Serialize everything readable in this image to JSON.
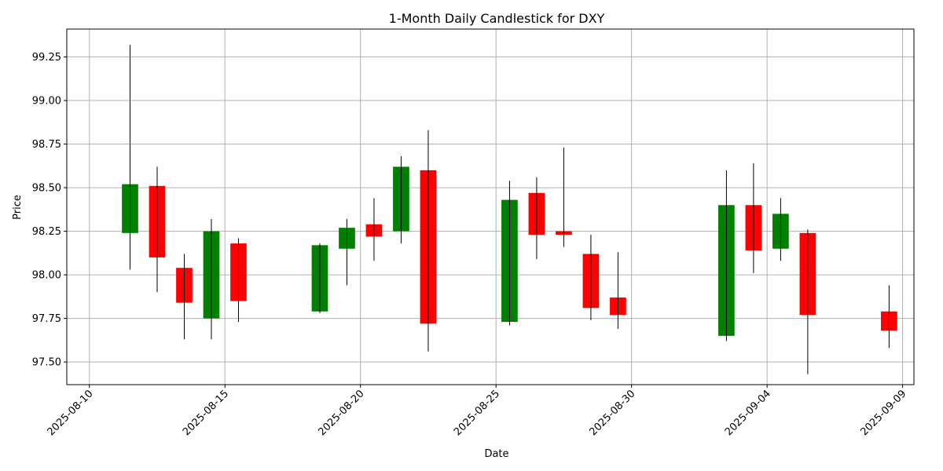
{
  "chart_data": {
    "type": "candlestick",
    "title": "1-Month Daily Candlestick for DXY",
    "xlabel": "Date",
    "ylabel": "Price",
    "ylim": [
      97.37,
      99.41
    ],
    "xlim": [
      "2025-08-09T04:00",
      "2025-09-09T10:00"
    ],
    "grid": true,
    "colors": {
      "up": "#008000",
      "down": "#ff0000",
      "wick": "#000000"
    },
    "x_ticks": [
      "2025-08-10",
      "2025-08-15",
      "2025-08-20",
      "2025-08-25",
      "2025-08-30",
      "2025-09-04",
      "2025-09-09"
    ],
    "y_ticks": [
      "97.50",
      "97.75",
      "98.00",
      "98.25",
      "98.50",
      "98.75",
      "99.00",
      "99.25"
    ],
    "candles": [
      {
        "date": "2025-08-11",
        "open": 98.24,
        "high": 99.32,
        "low": 98.03,
        "close": 98.52
      },
      {
        "date": "2025-08-12",
        "open": 98.51,
        "high": 98.62,
        "low": 97.9,
        "close": 98.1
      },
      {
        "date": "2025-08-13",
        "open": 98.04,
        "high": 98.12,
        "low": 97.63,
        "close": 97.84
      },
      {
        "date": "2025-08-14",
        "open": 97.75,
        "high": 98.32,
        "low": 97.63,
        "close": 98.25
      },
      {
        "date": "2025-08-15",
        "open": 98.18,
        "high": 98.21,
        "low": 97.73,
        "close": 97.85
      },
      {
        "date": "2025-08-18",
        "open": 97.79,
        "high": 98.18,
        "low": 97.78,
        "close": 98.17
      },
      {
        "date": "2025-08-19",
        "open": 98.15,
        "high": 98.32,
        "low": 97.94,
        "close": 98.27
      },
      {
        "date": "2025-08-20",
        "open": 98.29,
        "high": 98.44,
        "low": 98.08,
        "close": 98.22
      },
      {
        "date": "2025-08-21",
        "open": 98.25,
        "high": 98.68,
        "low": 98.18,
        "close": 98.62
      },
      {
        "date": "2025-08-22",
        "open": 98.6,
        "high": 98.83,
        "low": 97.56,
        "close": 97.72
      },
      {
        "date": "2025-08-25",
        "open": 97.73,
        "high": 98.54,
        "low": 97.71,
        "close": 98.43
      },
      {
        "date": "2025-08-26",
        "open": 98.47,
        "high": 98.56,
        "low": 98.09,
        "close": 98.23
      },
      {
        "date": "2025-08-27",
        "open": 98.25,
        "high": 98.73,
        "low": 98.16,
        "close": 98.23
      },
      {
        "date": "2025-08-28",
        "open": 98.12,
        "high": 98.23,
        "low": 97.74,
        "close": 97.81
      },
      {
        "date": "2025-08-29",
        "open": 97.87,
        "high": 98.13,
        "low": 97.69,
        "close": 97.77
      },
      {
        "date": "2025-09-02",
        "open": 97.65,
        "high": 98.6,
        "low": 97.62,
        "close": 98.4
      },
      {
        "date": "2025-09-03",
        "open": 98.4,
        "high": 98.64,
        "low": 98.01,
        "close": 98.14
      },
      {
        "date": "2025-09-04",
        "open": 98.15,
        "high": 98.44,
        "low": 98.08,
        "close": 98.35
      },
      {
        "date": "2025-09-05",
        "open": 98.24,
        "high": 98.26,
        "low": 97.43,
        "close": 97.77
      },
      {
        "date": "2025-09-08",
        "open": 97.79,
        "high": 97.94,
        "low": 97.58,
        "close": 97.68
      }
    ]
  }
}
